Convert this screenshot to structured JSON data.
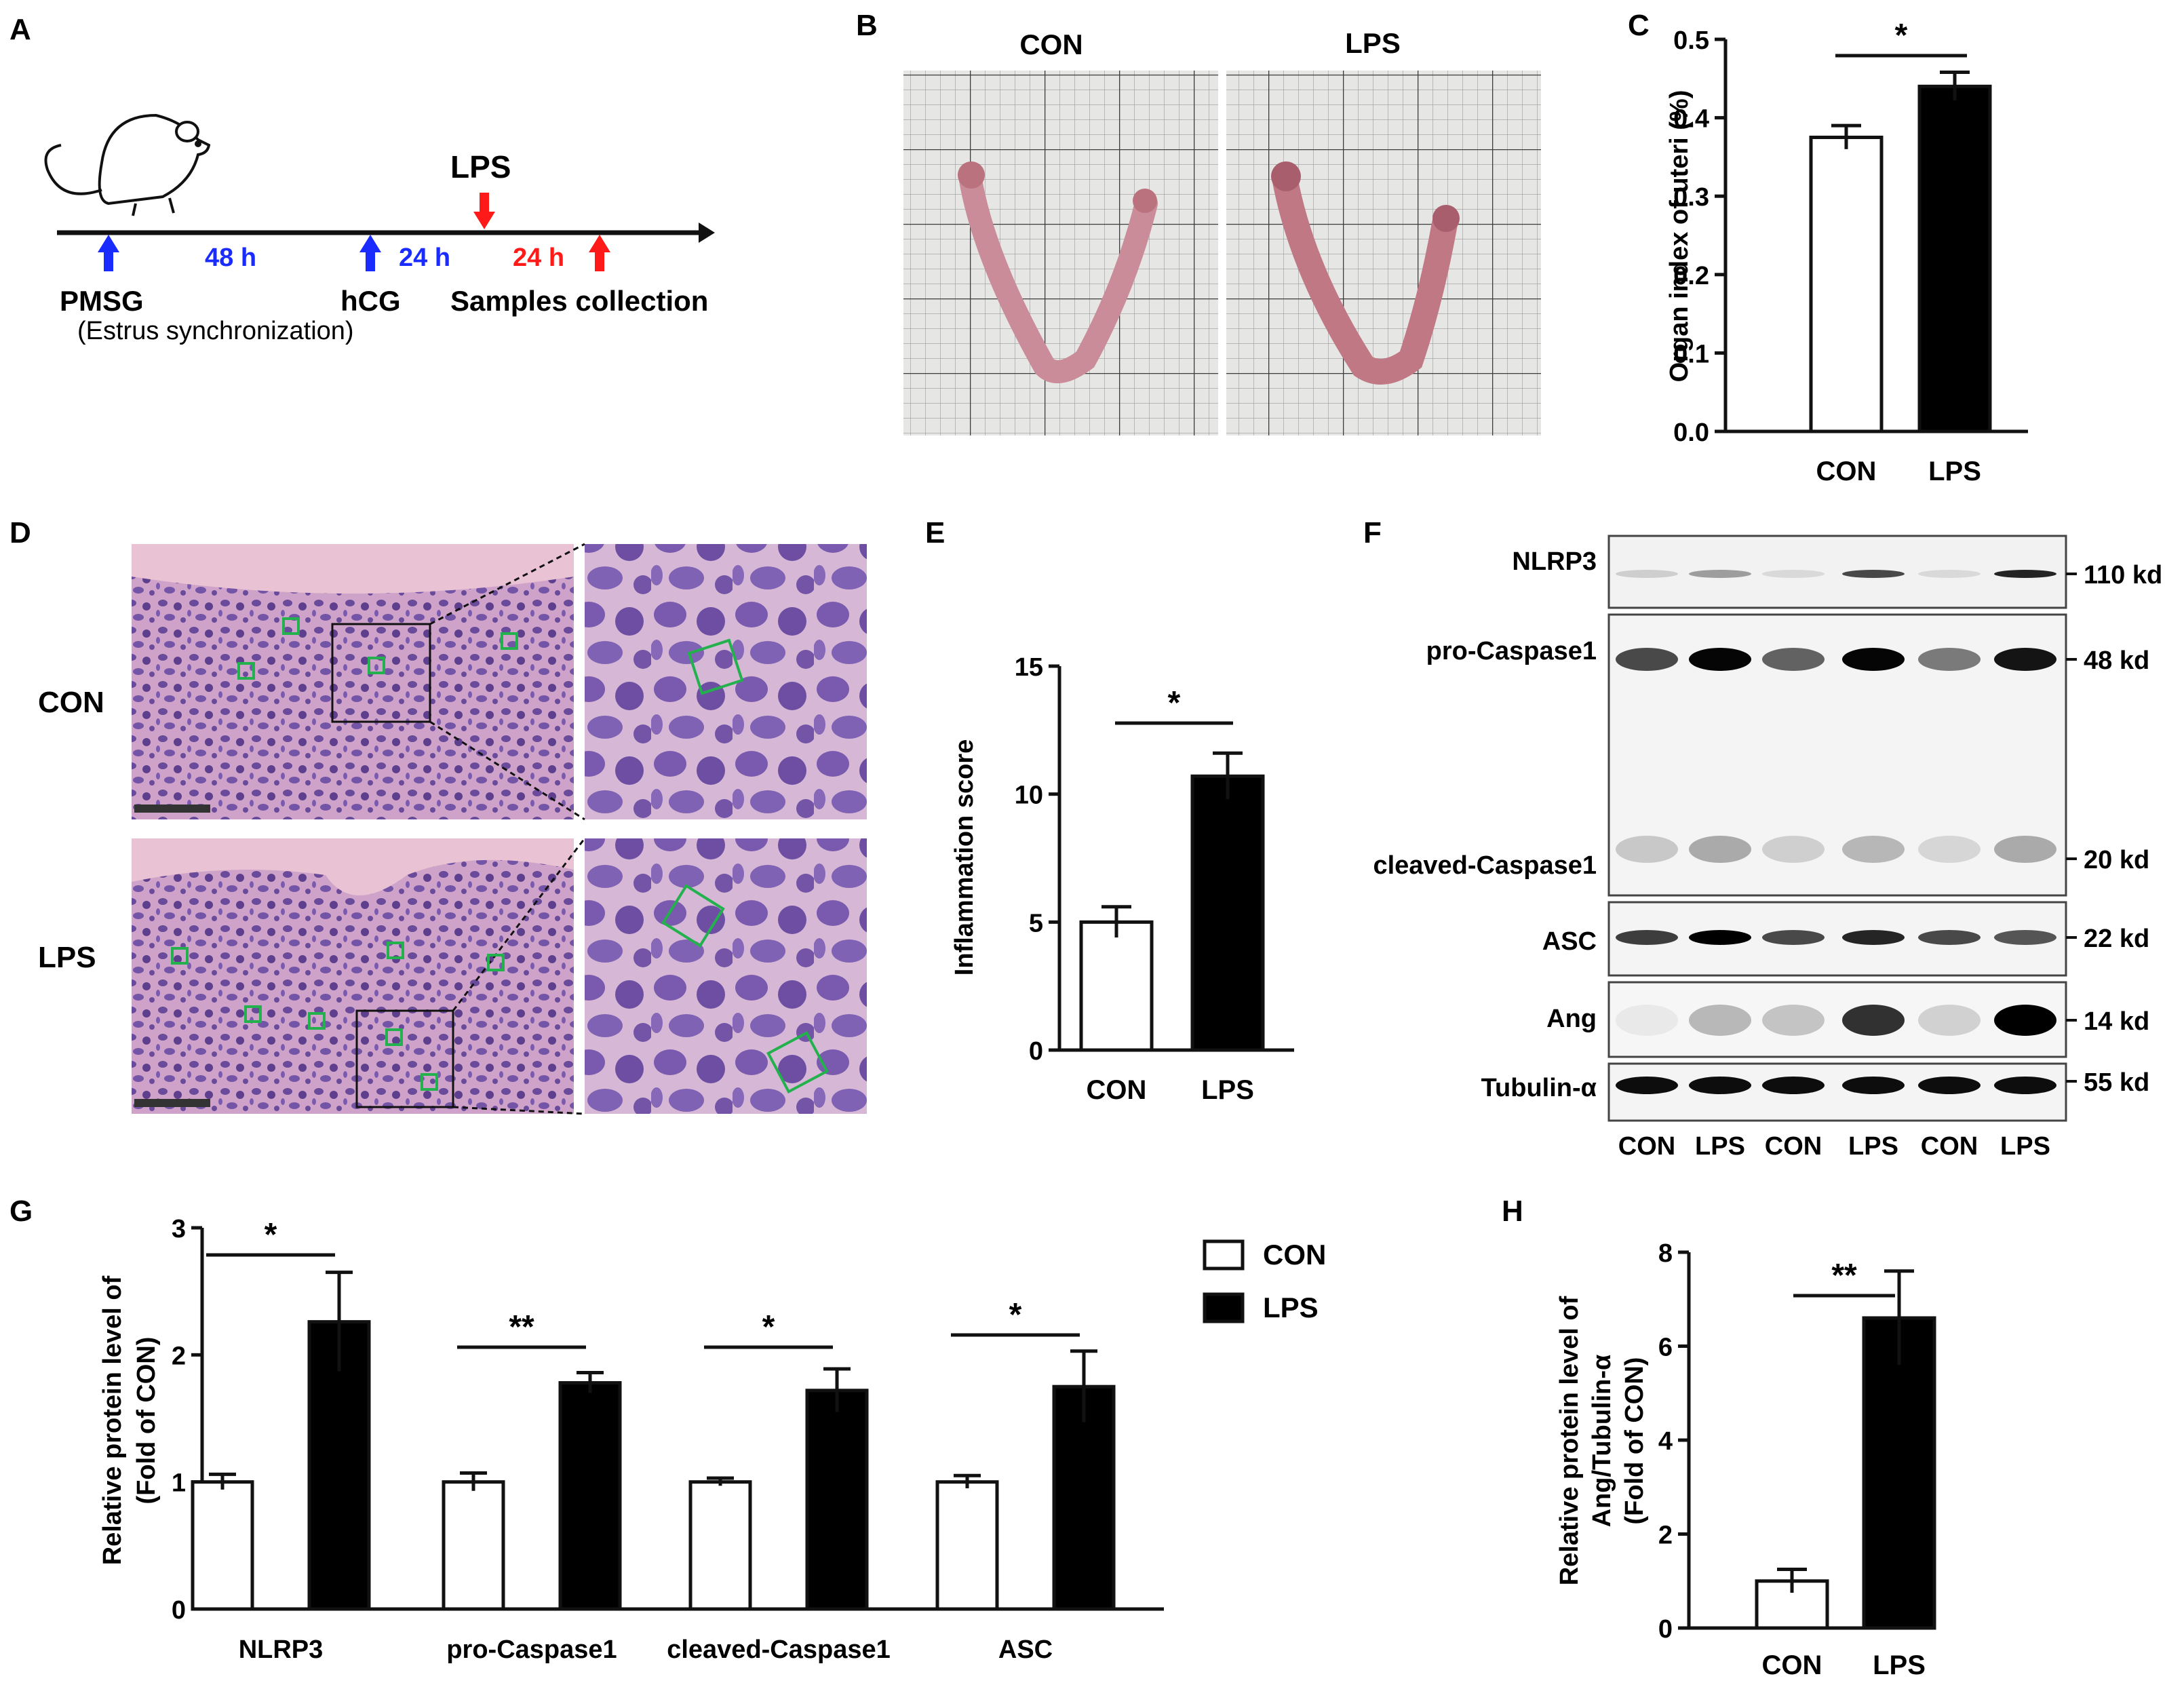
{
  "panels": {
    "A": "A",
    "B": "B",
    "C": "C",
    "D": "D",
    "E": "E",
    "F": "F",
    "G": "G",
    "H": "H"
  },
  "colors": {
    "con_fill": "#ffffff",
    "lps_fill": "#000000",
    "blue_arrow": "#1a2bff",
    "red_arrow": "#ff1a1a",
    "tissue_pink": "#c98c98",
    "grid_paper": "#e6e6e4",
    "box_green": "#22b14c"
  },
  "panel_a": {
    "lps_label": "LPS",
    "interval_1": "48 h",
    "interval_2": "24 h",
    "interval_3": "24 h",
    "pmsg": "PMSG",
    "estrus": "(Estrus synchronization)",
    "hcg": "hCG",
    "samples": "Samples collection",
    "icons": [
      "mouse-icon",
      "blue-up-arrow-icon",
      "red-down-arrow-icon",
      "red-up-arrow-icon"
    ]
  },
  "panel_b": {
    "con_title": "CON",
    "lps_title": "LPS"
  },
  "panel_d": {
    "con_label": "CON",
    "lps_label": "LPS"
  },
  "panel_f": {
    "bands": [
      "NLRP3",
      "pro-Caspase1",
      "cleaved-Caspase1",
      "ASC",
      "Ang",
      "Tubulin-α"
    ],
    "weights": [
      "110 kd",
      "48 kd",
      "20 kd",
      "22 kd",
      "14 kd",
      "55 kd"
    ],
    "lanes": [
      "CON",
      "LPS",
      "CON",
      "LPS",
      "CON",
      "LPS"
    ]
  },
  "chart_data": [
    {
      "panel": "C",
      "type": "bar",
      "categories": [
        "CON",
        "LPS"
      ],
      "values": [
        0.375,
        0.44
      ],
      "errors": [
        0.015,
        0.018
      ],
      "ylabel": "Organ index of uteri (%)",
      "ylim": [
        0,
        0.5
      ],
      "yticks": [
        "0.0",
        "0.1",
        "0.2",
        "0.3",
        "0.4",
        "0.5"
      ],
      "significance": "*"
    },
    {
      "panel": "E",
      "type": "bar",
      "categories": [
        "CON",
        "LPS"
      ],
      "values": [
        5.0,
        10.7
      ],
      "errors": [
        0.6,
        0.9
      ],
      "ylabel": "Inflammation score",
      "ylim": [
        0,
        15
      ],
      "yticks": [
        "0",
        "5",
        "10",
        "15"
      ],
      "significance": "*"
    },
    {
      "panel": "G",
      "type": "bar",
      "categories": [
        "NLRP3",
        "pro-Caspase1",
        "cleaved-Caspase1",
        "ASC"
      ],
      "series": [
        {
          "name": "CON",
          "values": [
            1.0,
            1.0,
            1.0,
            1.0
          ],
          "errors": [
            0.06,
            0.07,
            0.03,
            0.05
          ]
        },
        {
          "name": "LPS",
          "values": [
            2.26,
            1.78,
            1.72,
            1.75
          ],
          "errors": [
            0.39,
            0.08,
            0.17,
            0.28
          ]
        }
      ],
      "ylabel_line1": "Relative protein level of",
      "ylabel_line2": "(Fold of CON)",
      "ylim": [
        0,
        3
      ],
      "yticks": [
        "0",
        "1",
        "2",
        "3"
      ],
      "significance": [
        "*",
        "**",
        "*",
        "*"
      ],
      "legend": [
        "CON",
        "LPS"
      ],
      "legend_position": "top-right"
    },
    {
      "panel": "H",
      "type": "bar",
      "categories": [
        "CON",
        "LPS"
      ],
      "values": [
        1.0,
        6.6
      ],
      "errors": [
        0.25,
        1.0
      ],
      "ylabel_line1": "Relative protein level of",
      "ylabel_line2": "Ang/Tubulin-α",
      "ylabel_line3": "(Fold of CON)",
      "ylim": [
        0,
        8
      ],
      "yticks": [
        "0",
        "2",
        "4",
        "6",
        "8"
      ],
      "significance": "**"
    }
  ]
}
